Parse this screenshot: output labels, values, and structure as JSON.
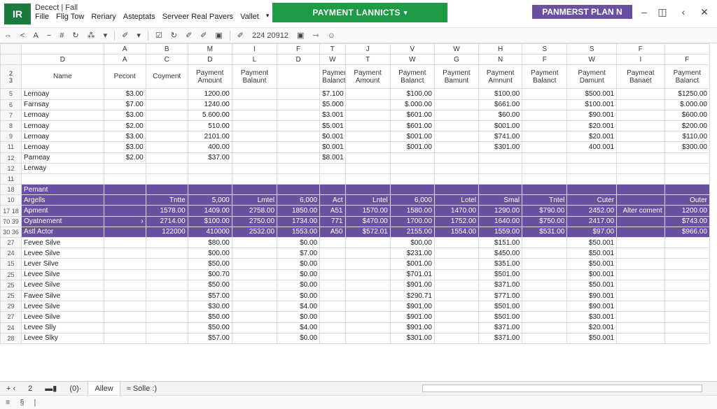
{
  "app": {
    "logo": "IR",
    "doc_name": "Decect",
    "doc_sep": "|",
    "doc_file": "Fall",
    "menu": [
      "Fille",
      "Flig Tow",
      "Reriary",
      "Asteptats",
      "Serveer Real Pavers",
      "Vallet"
    ],
    "payment_button": "PAYMENT LANNICTS",
    "plan_badge": "PANMERST PLAN N",
    "toolbar": [
      "⇔",
      "<",
      "A",
      "−",
      "#",
      "↻",
      "⁂",
      "▾",
      "✐",
      "▾",
      "☑",
      "↻",
      "✐",
      "✐",
      "▣",
      "✐",
      "224 20912",
      "▣",
      "⇾",
      "☺"
    ]
  },
  "sheet": {
    "col_letters": [
      "A",
      "B",
      "M",
      "I",
      "F",
      "T",
      "J",
      "V",
      "W",
      "H",
      "S",
      "S",
      "F"
    ],
    "sub_letters": [
      "D",
      "A",
      "C",
      "D",
      "L",
      "D",
      "W",
      "T",
      "W",
      "G",
      "N",
      "F",
      "W",
      "I",
      "F"
    ],
    "header_row_nums": [
      "2",
      "3"
    ],
    "headers": [
      "Name",
      "Pecont",
      "Coyment",
      "Payment Amount",
      "Payment Balaunt",
      "",
      "Payment Balanct",
      "Payment Amount",
      "Payment Balanct",
      "Payment Bamunt",
      "Payment Amnunt",
      "Payment Balanct",
      "Payment Damunt",
      "Paymeat Banaet",
      "Payment Balanct"
    ],
    "top_rows": [
      {
        "row": "5",
        "cells": [
          "Lernoay",
          "$3.00",
          "",
          "1200.00",
          "",
          "",
          "$7.100",
          "",
          "$100.00",
          "",
          "$100.00",
          "",
          "$500.001",
          "",
          "$1250.00"
        ]
      },
      {
        "row": "6",
        "cells": [
          "Farnsay",
          "$7.00",
          "",
          "1240.00",
          "",
          "",
          "$5.000",
          "",
          "$.000.00",
          "",
          "$661.00",
          "",
          "$100.001",
          "",
          "$.000.00"
        ]
      },
      {
        "row": "7",
        "cells": [
          "Lernoay",
          "$3.00",
          "",
          "5.600.00",
          "",
          "",
          "$3.001",
          "",
          "$601.00",
          "",
          "$60.00",
          "",
          "$90.001",
          "",
          "$600.00"
        ]
      },
      {
        "row": "8",
        "cells": [
          "Lernoay",
          "$2.00",
          "",
          "510.00",
          "",
          "",
          "$5.001",
          "",
          "$601.00",
          "",
          "$001.00",
          "",
          "$20.001",
          "",
          "$200.00"
        ]
      },
      {
        "row": "9",
        "cells": [
          "Lernoay",
          "$3.00",
          "",
          "2101.00",
          "",
          "",
          "$0.001",
          "",
          "$001.00",
          "",
          "$741.00",
          "",
          "$20.001",
          "",
          "$110.00"
        ]
      },
      {
        "row": "11",
        "cells": [
          "Lernoay",
          "$3.00",
          "",
          "400.00",
          "",
          "",
          "$0.001",
          "",
          "$001.00",
          "",
          "$301.00",
          "",
          "400.001",
          "",
          "$300.00"
        ]
      },
      {
        "row": "12",
        "cells": [
          "Parneay",
          "$2.00",
          "",
          "$37.00",
          "",
          "",
          "$8.001",
          "",
          "",
          "",
          "",
          "",
          "",
          "",
          ""
        ]
      },
      {
        "row": "12",
        "cells": [
          "Lerway",
          "",
          "",
          "",
          "",
          "",
          "",
          "",
          "",
          "",
          "",
          "",
          "",
          "",
          ""
        ]
      },
      {
        "row": "11",
        "cells": [
          "",
          "",
          "",
          "",
          "",
          "",
          "",
          "",
          "",
          "",
          "",
          "",
          "",
          "",
          ""
        ]
      }
    ],
    "purple_rows": [
      {
        "row": "18",
        "cls": "",
        "cells": [
          "Pemant",
          "",
          "",
          "",
          "",
          "",
          "",
          "",
          "",
          "",
          "",
          "",
          "",
          "",
          ""
        ]
      },
      {
        "row": "10",
        "cls": "mid",
        "cells": [
          "Argells",
          "",
          "Tntte",
          "5,000",
          "Lmtel",
          "6,000",
          "Act",
          "Lntel",
          "6,000",
          "Lotel",
          "Smal",
          "Tntel",
          "Cuter",
          "",
          "Outer"
        ]
      },
      {
        "row": "17 18",
        "cls": "tall",
        "cells": [
          "Apment",
          "",
          "1578.00",
          "1409.00",
          "2758.00",
          "1850.00",
          "A51",
          "1570.00",
          "1580.00",
          "1470.00",
          "1290.00",
          "$790.00",
          "2452.00",
          "Alter coment",
          "1200.00"
        ]
      },
      {
        "row": "70 39",
        "cls": "tall",
        "cells": [
          "Oyatnement",
          "›",
          "2714.00",
          "$100.00",
          "2750.00",
          "1734.00",
          "771",
          "$470.00",
          "1700.00",
          "1752.00",
          "1640.00",
          "$750.00",
          "2417.00",
          "",
          "$743.00"
        ]
      },
      {
        "row": "30 36",
        "cls": "tall",
        "cells": [
          "Astl Actor",
          "",
          "122000",
          "410000",
          "2532.00",
          "1553.00",
          "A50",
          "$572.01",
          "2155.00",
          "1554.00",
          "1559.00",
          "$531.00",
          "$97.00",
          "",
          "$966.00"
        ]
      }
    ],
    "bottom_rows": [
      {
        "row": "27",
        "cells": [
          "Fevee Silve",
          "",
          "",
          "$80.00",
          "",
          "$0.00",
          "",
          "",
          "$00.00",
          "",
          "$151.00",
          "",
          "$50.001",
          "",
          ""
        ]
      },
      {
        "row": "24",
        "cells": [
          "Levee Silve",
          "",
          "",
          "$00.00",
          "",
          "$7.00",
          "",
          "",
          "$231.00",
          "",
          "$450.00",
          "",
          "$50.001",
          "",
          ""
        ]
      },
      {
        "row": "15",
        "cells": [
          "Lever Silve",
          "",
          "",
          "$50.00",
          "",
          "$0.00",
          "",
          "",
          "$001.00",
          "",
          "$351.00",
          "",
          "$50.001",
          "",
          ""
        ]
      },
      {
        "row": "25",
        "cells": [
          "Levee Silve",
          "",
          "",
          "$00.70",
          "",
          "$0.00",
          "",
          "",
          "$701.01",
          "",
          "$501.00",
          "",
          "$00.001",
          "",
          ""
        ]
      },
      {
        "row": "25",
        "cells": [
          "Levee Silve",
          "",
          "",
          "$50.00",
          "",
          "$0.00",
          "",
          "",
          "$901.00",
          "",
          "$371.00",
          "",
          "$50.001",
          "",
          ""
        ]
      },
      {
        "row": "25",
        "cells": [
          "Favee Silve",
          "",
          "",
          "$57.00",
          "",
          "$0.00",
          "",
          "",
          "$290.71",
          "",
          "$771.00",
          "",
          "$90.001",
          "",
          ""
        ]
      },
      {
        "row": "29",
        "cells": [
          "Levee Silve",
          "",
          "",
          "$30.00",
          "",
          "$4.00",
          "",
          "",
          "$901.00",
          "",
          "$501.00",
          "",
          "$90.001",
          "",
          ""
        ]
      },
      {
        "row": "27",
        "cells": [
          "Levee Silve",
          "",
          "",
          "$50.00",
          "",
          "$0.00",
          "",
          "",
          "$901.00",
          "",
          "$501.00",
          "",
          "$30.001",
          "",
          ""
        ]
      },
      {
        "row": "24",
        "cells": [
          "Levee Slly",
          "",
          "",
          "$50.00",
          "",
          "$4.00",
          "",
          "",
          "$901.00",
          "",
          "$371.00",
          "",
          "$20.001",
          "",
          ""
        ]
      },
      {
        "row": "28",
        "cells": [
          "Levee Slky",
          "",
          "",
          "$57.00",
          "",
          "$0.00",
          "",
          "",
          "$301.00",
          "",
          "$371.00",
          "",
          "$50.001",
          "",
          ""
        ]
      }
    ]
  },
  "tabs": {
    "nav": "+ ‹",
    "count": "2",
    "sheet1": "▬▮",
    "sheet2": "(0)·",
    "active": "Allew",
    "sheet4": "≈ Solle :)"
  },
  "status": [
    "≡",
    "§",
    "|"
  ]
}
